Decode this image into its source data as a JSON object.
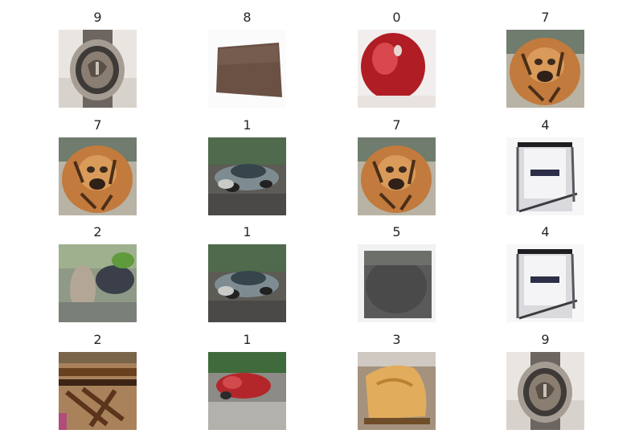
{
  "figure": {
    "cells": [
      {
        "label": "9",
        "subject": "wristwatch"
      },
      {
        "label": "8",
        "subject": "brown-square"
      },
      {
        "label": "0",
        "subject": "red-apple"
      },
      {
        "label": "7",
        "subject": "tiger"
      },
      {
        "label": "7",
        "subject": "tiger"
      },
      {
        "label": "1",
        "subject": "gray-car"
      },
      {
        "label": "7",
        "subject": "tiger"
      },
      {
        "label": "4",
        "subject": "phone-booth"
      },
      {
        "label": "2",
        "subject": "green-blur"
      },
      {
        "label": "1",
        "subject": "gray-car"
      },
      {
        "label": "5",
        "subject": "dark-blob"
      },
      {
        "label": "4",
        "subject": "phone-booth"
      },
      {
        "label": "2",
        "subject": "wooden-debris"
      },
      {
        "label": "1",
        "subject": "red-car"
      },
      {
        "label": "3",
        "subject": "orange-lump"
      },
      {
        "label": "9",
        "subject": "wristwatch"
      }
    ]
  }
}
